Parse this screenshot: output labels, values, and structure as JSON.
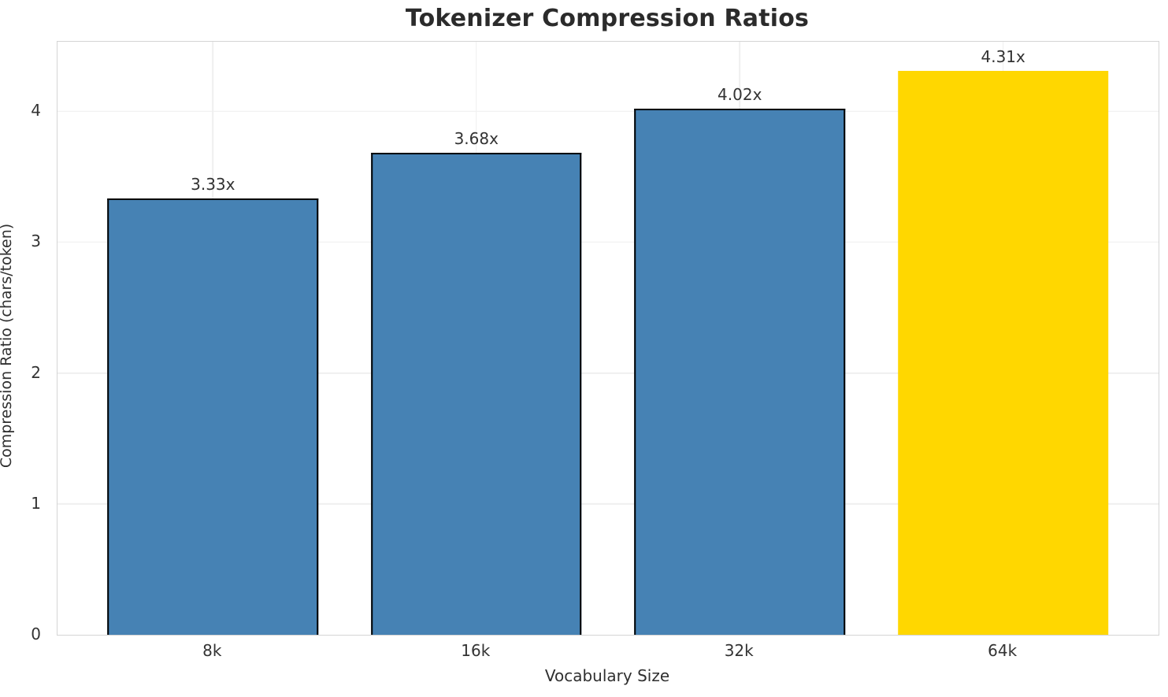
{
  "chart_data": {
    "type": "bar",
    "title": "Tokenizer Compression Ratios",
    "xlabel": "Vocabulary Size",
    "ylabel": "Compression Ratio (chars/token)",
    "categories": [
      "8k",
      "16k",
      "32k",
      "64k"
    ],
    "values": [
      3.33,
      3.68,
      4.02,
      4.31
    ],
    "value_labels": [
      "3.33x",
      "3.68x",
      "4.02x",
      "4.31x"
    ],
    "highlight_index": 3,
    "bar_color": "#4682B4",
    "highlight_color": "#FFD700",
    "bar_edge_color": "#000000",
    "grid_color": "#efefef",
    "spine_color": "#d4d4d4",
    "ylim": [
      0,
      4.53
    ],
    "yticks": [
      0,
      1,
      2,
      3,
      4
    ],
    "xlim": [
      -0.59,
      3.59
    ],
    "bar_width_units": 0.8,
    "grid": true,
    "legend_position": "none"
  }
}
